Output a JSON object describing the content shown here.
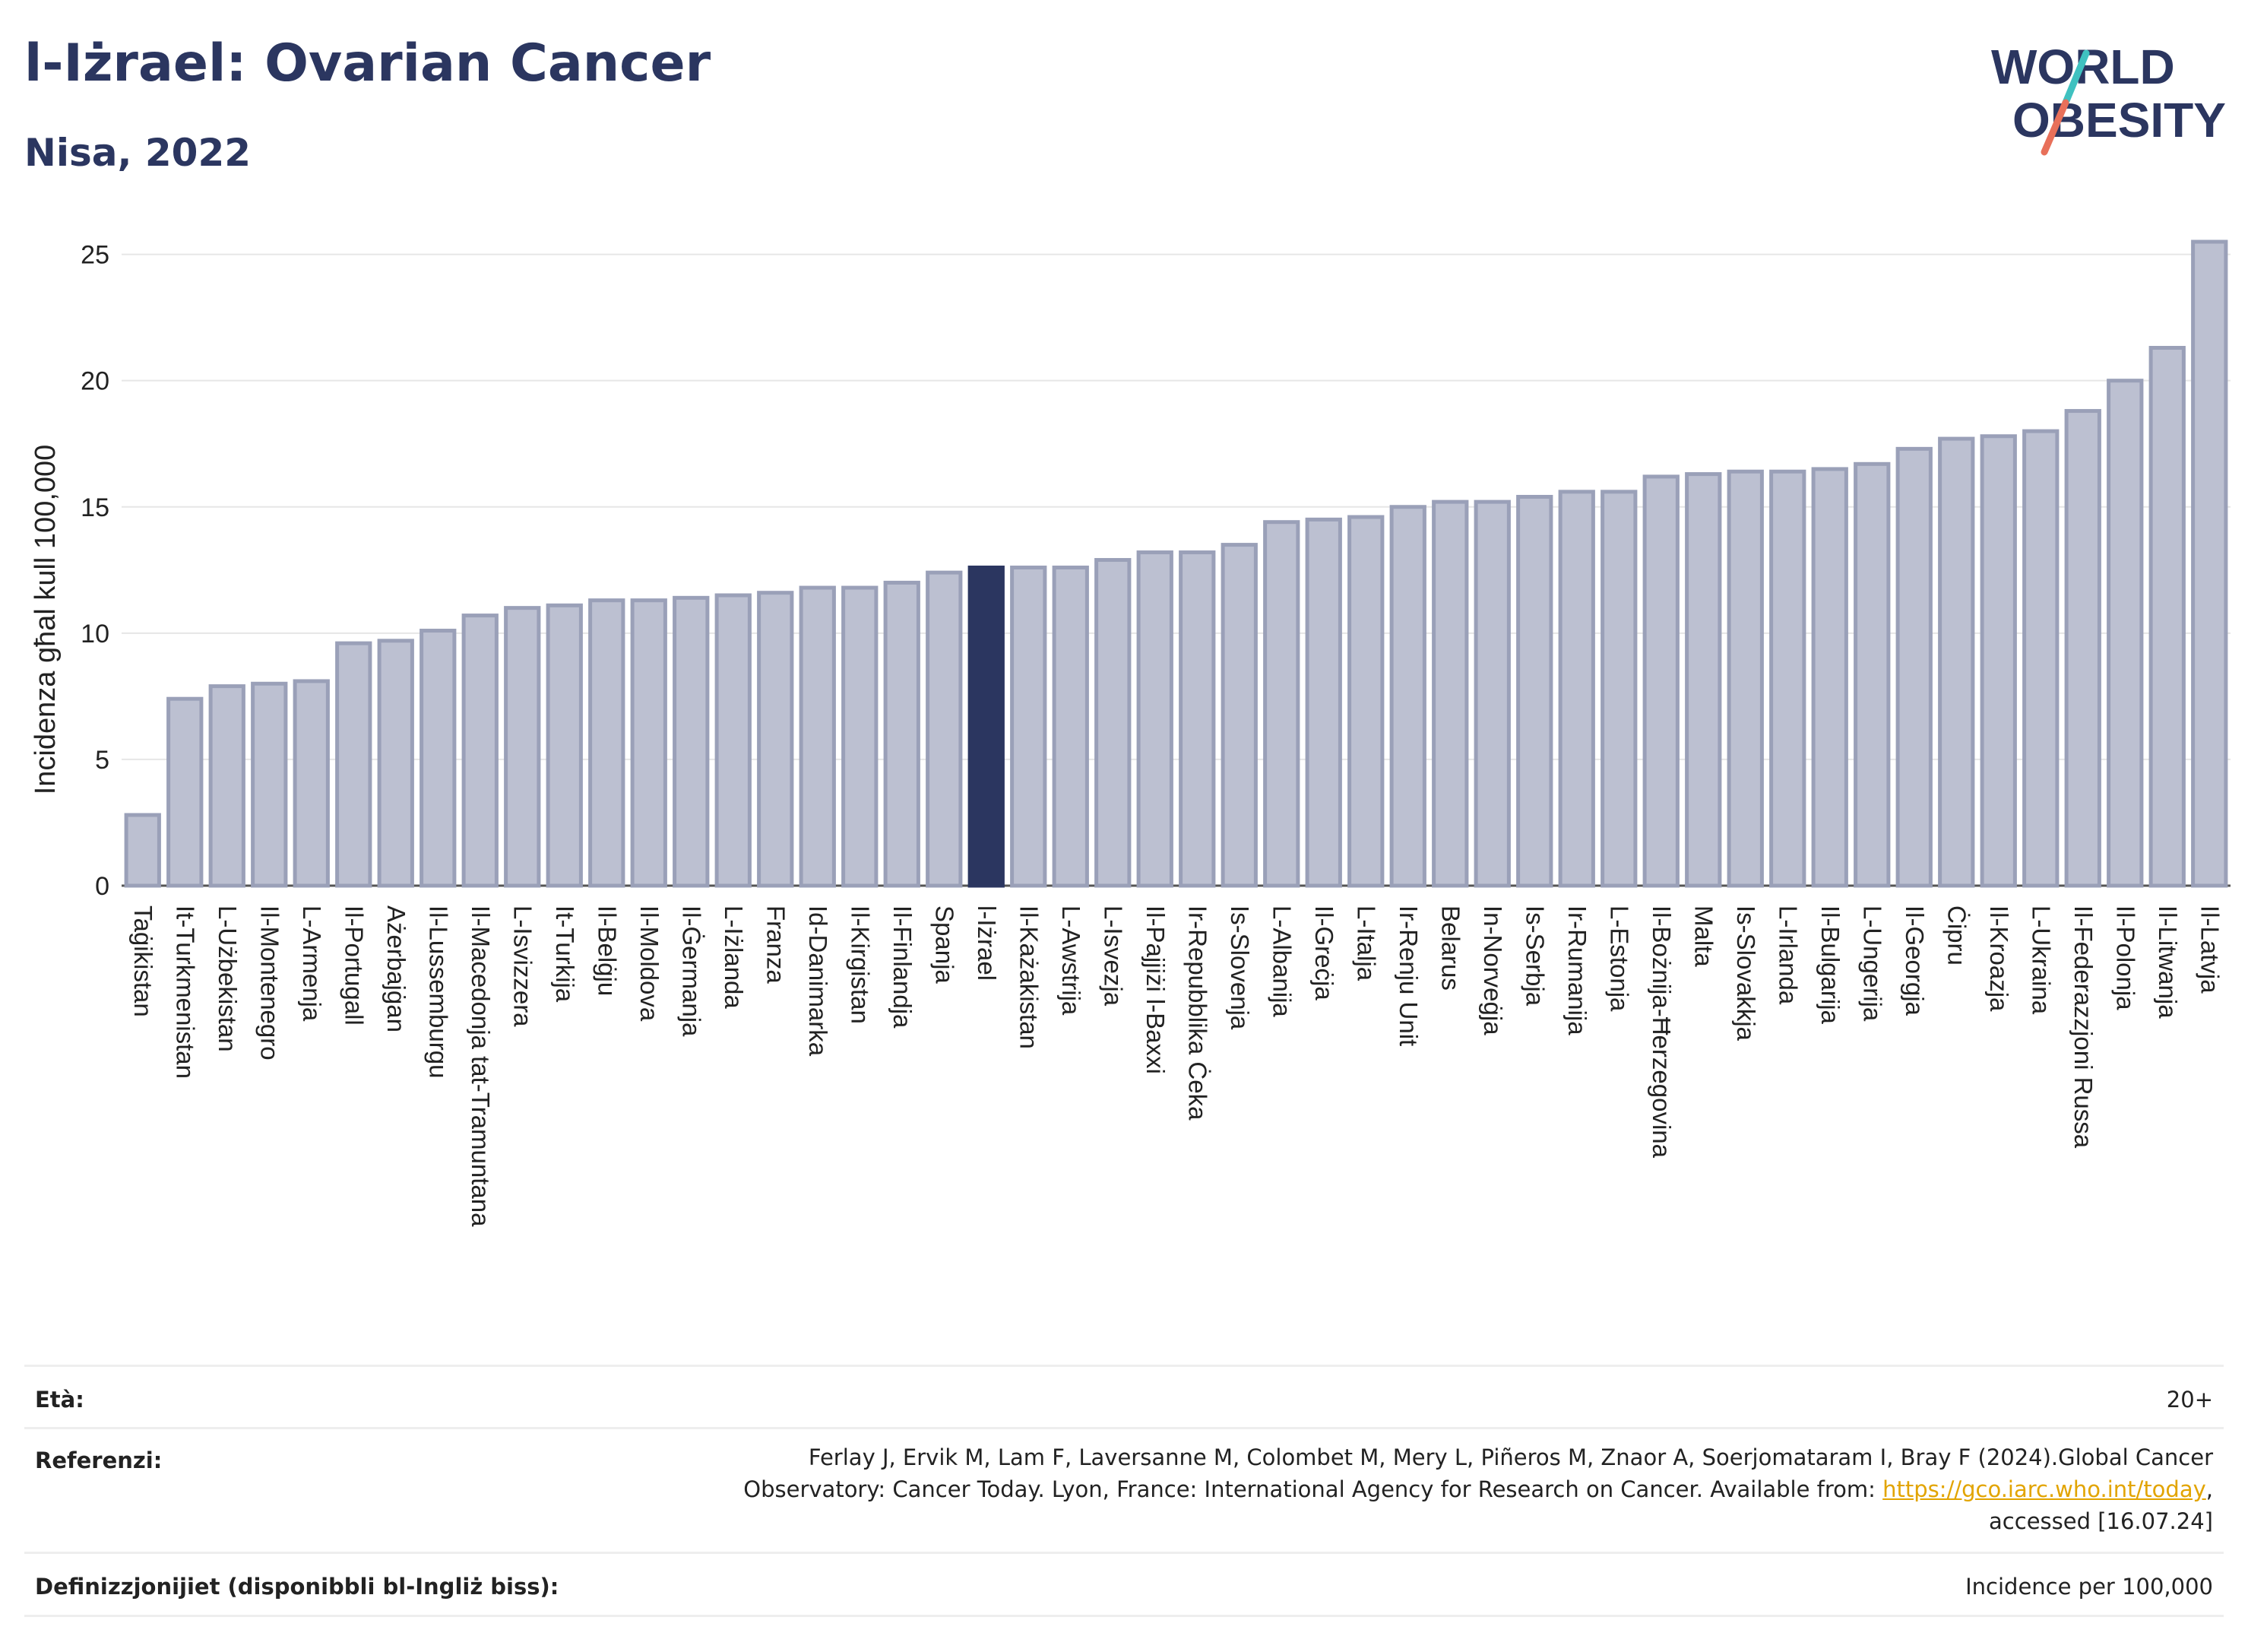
{
  "header": {
    "title": "l-Iżrael: Ovarian Cancer",
    "subtitle": "Nisa, 2022"
  },
  "logo": {
    "line1": "WORLD",
    "line2": "OBESITY",
    "colors": {
      "text": "#2b3660",
      "slash_top": "#3fc1c0",
      "slash_bottom": "#e8705a"
    }
  },
  "chart_data": {
    "type": "bar",
    "ylabel": "Incidenza għal kull 100,000",
    "xlabel": "",
    "ylim": [
      0,
      25.5
    ],
    "yticks": [
      0,
      5,
      10,
      15,
      20,
      25
    ],
    "grid": true,
    "highlight": "l-Iżrael",
    "colors": {
      "bar": "#bcc0d1",
      "bar_edge": "#9aa0b8",
      "highlight": "#2b3660",
      "grid": "#e6e6e6"
    },
    "categories": [
      "Taġikistan",
      "It-Turkmenistan",
      "L-Użbekistan",
      "Il-Montenegro",
      "L-Armenja",
      "Il-Portugall",
      "Ażerbajġan",
      "Il-Lussemburgu",
      "Il-Macedonja tat-Tramuntana",
      "L-Isvizzera",
      "It-Turkija",
      "Il-Belġju",
      "Il-Moldova",
      "Il-Ġermanja",
      "L-Iżlanda",
      "Franza",
      "Id-Danimarka",
      "Il-Kirgistan",
      "Il-Finlandja",
      "Spanja",
      "l-Iżrael",
      "Il-Każakistan",
      "L-Awstrija",
      "L-Isvezja",
      "Il-Pajjiżi l-Baxxi",
      "Ir-Repubblika Ċeka",
      "Is-Slovenja",
      "L-Albanija",
      "Il-Greċja",
      "L-Italja",
      "Ir-Renju Unit",
      "Belarus",
      "In-Norveġja",
      "Is-Serbja",
      "Ir-Rumanija",
      "L-Estonja",
      "Il-Bożnija-Ħerzegovina",
      "Malta",
      "Is-Slovakkja",
      "L-Irlanda",
      "Il-Bulgarija",
      "L-Ungerija",
      "Il-Georgja",
      "Ċipru",
      "Il-Kroazja",
      "L-Ukraina",
      "Il-Federazzjoni Russa",
      "Il-Polonja",
      "Il-Litwanja",
      "Il-Latvja"
    ],
    "values": [
      2.8,
      7.4,
      7.9,
      8.0,
      8.1,
      9.6,
      9.7,
      10.1,
      10.7,
      11.0,
      11.1,
      11.3,
      11.3,
      11.4,
      11.5,
      11.6,
      11.8,
      11.8,
      12.0,
      12.4,
      12.6,
      12.6,
      12.6,
      12.9,
      13.2,
      13.2,
      13.5,
      14.4,
      14.5,
      14.6,
      15.0,
      15.2,
      15.2,
      15.4,
      15.6,
      15.6,
      16.2,
      16.3,
      16.4,
      16.4,
      16.5,
      16.7,
      17.3,
      17.7,
      17.8,
      18.0,
      18.8,
      20.0,
      21.3,
      25.5
    ]
  },
  "info": {
    "age_label": "Età:",
    "age_value": "20+",
    "ref_label": "Referenzi:",
    "ref_line1": "Ferlay J, Ervik M, Lam F, Laversanne M, Colombet M, Mery L, Piñeros M, Znaor A, Soerjomataram I, Bray F (2024).Global Cancer",
    "ref_line2_prefix": "Observatory: Cancer Today. Lyon, France: International Agency for Research on Cancer. Available from: ",
    "ref_link": "https://gco.iarc.who.int/today",
    "ref_line2_suffix": ",",
    "ref_line3": "accessed [16.07.24]",
    "def_label": "Definizzjonijiet (disponibbli bl-Ingliż biss):",
    "def_value": "Incidence per 100,000"
  }
}
